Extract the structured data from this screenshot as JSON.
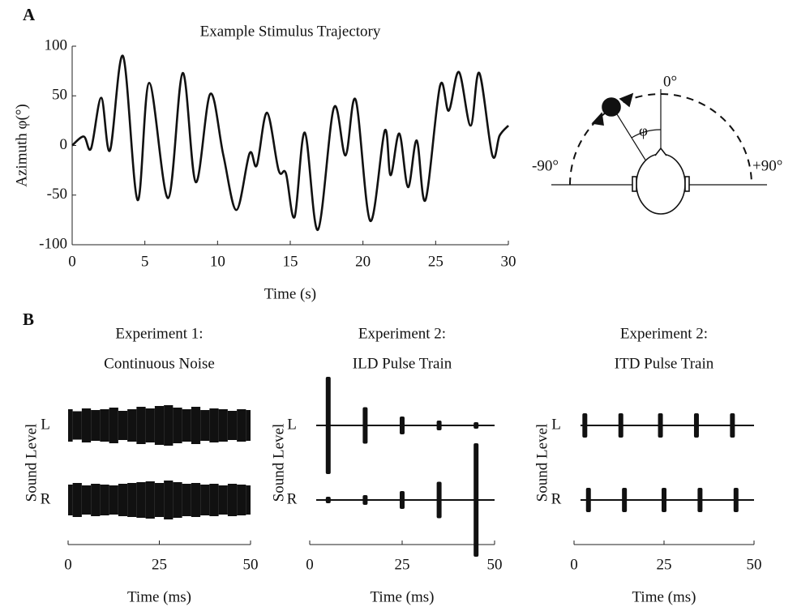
{
  "panel_labels": [
    "A",
    "B"
  ],
  "diagram": {
    "top_label": "0°",
    "angle_label": "φ",
    "left_label": "-90°",
    "right_label": "+90°"
  },
  "chart_data": [
    {
      "type": "line",
      "title": "Example Stimulus Trajectory",
      "xlabel": "Time (s)",
      "ylabel": "Azimuth φ(°)",
      "color": "#111111",
      "x": [
        0,
        0.8,
        1.3,
        2.0,
        2.6,
        3.5,
        4.5,
        5.3,
        6.6,
        7.6,
        8.5,
        9.5,
        10.4,
        11.3,
        12.2,
        12.7,
        13.4,
        14.2,
        14.7,
        15.3,
        16.0,
        16.9,
        18.0,
        18.8,
        19.5,
        20.5,
        21.5,
        21.9,
        22.5,
        23.1,
        23.7,
        24.3,
        25.3,
        25.9,
        26.6,
        27.4,
        28.0,
        28.9,
        29.4,
        30
      ],
      "values": [
        0,
        9,
        -3,
        48,
        -5,
        90,
        -55,
        63,
        -53,
        73,
        -37,
        52,
        -10,
        -65,
        -8,
        -20,
        33,
        -25,
        -28,
        -72,
        13,
        -85,
        38,
        -10,
        46,
        -76,
        15,
        -30,
        12,
        -42,
        5,
        -55,
        60,
        35,
        74,
        20,
        73,
        -10,
        10,
        20
      ],
      "xlim": [
        0,
        30
      ],
      "xticks": [
        0,
        5,
        10,
        15,
        20,
        25,
        30
      ],
      "ylim": [
        -100,
        100
      ],
      "yticks": [
        -100,
        -50,
        0,
        50,
        100
      ]
    },
    {
      "type": "noise",
      "title": "Experiment 1:",
      "subtitle": "Continuous Noise",
      "xlabel": "Time (ms)",
      "ylabel": "Sound Level",
      "color": "#111111",
      "xlim": [
        0,
        50
      ],
      "xticks": [
        0,
        25,
        50
      ],
      "series": [
        {
          "name": "L",
          "x": [
            0,
            2.5,
            5,
            7.5,
            10,
            12.5,
            15,
            17.5,
            20,
            22.5,
            25,
            27.5,
            30,
            32.5,
            35,
            37.5,
            40,
            42.5,
            45,
            47.5,
            50
          ],
          "values": [
            0.4,
            0.35,
            0.42,
            0.38,
            0.4,
            0.44,
            0.36,
            0.4,
            0.46,
            0.42,
            0.48,
            0.5,
            0.44,
            0.4,
            0.46,
            0.38,
            0.42,
            0.4,
            0.36,
            0.4,
            0.38
          ]
        },
        {
          "name": "R",
          "x": [
            0,
            2.5,
            5,
            7.5,
            10,
            12.5,
            15,
            17.5,
            20,
            22.5,
            25,
            27.5,
            30,
            32.5,
            35,
            37.5,
            40,
            42.5,
            45,
            47.5,
            50
          ],
          "values": [
            0.38,
            0.42,
            0.36,
            0.4,
            0.38,
            0.36,
            0.4,
            0.42,
            0.44,
            0.46,
            0.42,
            0.48,
            0.44,
            0.4,
            0.42,
            0.38,
            0.4,
            0.36,
            0.4,
            0.38,
            0.36
          ]
        }
      ]
    },
    {
      "type": "pulse",
      "title": "Experiment 2:",
      "subtitle": "ILD Pulse Train",
      "xlabel": "Time (ms)",
      "ylabel": "Sound Level",
      "color": "#111111",
      "xlim": [
        0,
        50
      ],
      "xticks": [
        0,
        25,
        50
      ],
      "series": [
        {
          "name": "L",
          "x": [
            5,
            15,
            25,
            35,
            45
          ],
          "values": [
            1.2,
            0.45,
            0.22,
            0.12,
            0.08
          ]
        },
        {
          "name": "R",
          "x": [
            5,
            15,
            25,
            35,
            45
          ],
          "values": [
            0.08,
            0.12,
            0.22,
            0.45,
            1.4
          ]
        }
      ]
    },
    {
      "type": "pulse",
      "title": "Experiment 2:",
      "subtitle": "ITD Pulse Train",
      "xlabel": "Time (ms)",
      "ylabel": "Sound Level",
      "color": "#111111",
      "xlim": [
        0,
        50
      ],
      "xticks": [
        0,
        25,
        50
      ],
      "series": [
        {
          "name": "L",
          "x": [
            3,
            13,
            24,
            34,
            44
          ],
          "values": [
            0.3,
            0.3,
            0.3,
            0.3,
            0.3
          ]
        },
        {
          "name": "R",
          "x": [
            4,
            14,
            25,
            35,
            45
          ],
          "values": [
            0.3,
            0.3,
            0.3,
            0.3,
            0.3
          ]
        }
      ]
    }
  ]
}
